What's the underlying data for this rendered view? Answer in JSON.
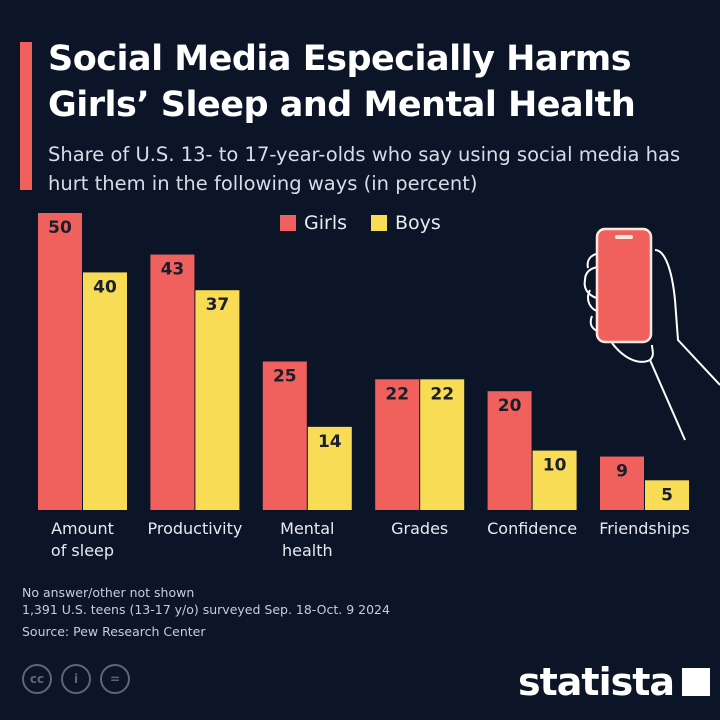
{
  "title": "Social Media Especially Harms Girls’ Sleep and Mental Health",
  "subtitle": "Share of U.S. 13- to 17-year-olds who say using social media has hurt them in the following ways (in percent)",
  "colors": {
    "background": "#0c1528",
    "girls": "#f0605d",
    "boys": "#f8dc56",
    "accent": "#f0605d"
  },
  "chart_data": {
    "type": "bar",
    "categories": [
      "Amount of sleep",
      "Productivity",
      "Mental health",
      "Grades",
      "Confidence",
      "Friendships"
    ],
    "series": [
      {
        "name": "Girls",
        "values": [
          50,
          43,
          25,
          22,
          20,
          9
        ]
      },
      {
        "name": "Boys",
        "values": [
          40,
          37,
          14,
          22,
          10,
          5
        ]
      }
    ],
    "ylim": [
      0,
      50
    ],
    "grid": false,
    "legend": "top-center",
    "data_labels": true
  },
  "footer": {
    "note1": "No answer/other not shown",
    "note2": "1,391 U.S. teens (13-17 y/o) surveyed Sep. 18-Oct. 9 2024",
    "source": "Source: Pew Research Center",
    "cc_icons": [
      "cc",
      "by",
      "nd"
    ],
    "logo": "statista"
  }
}
